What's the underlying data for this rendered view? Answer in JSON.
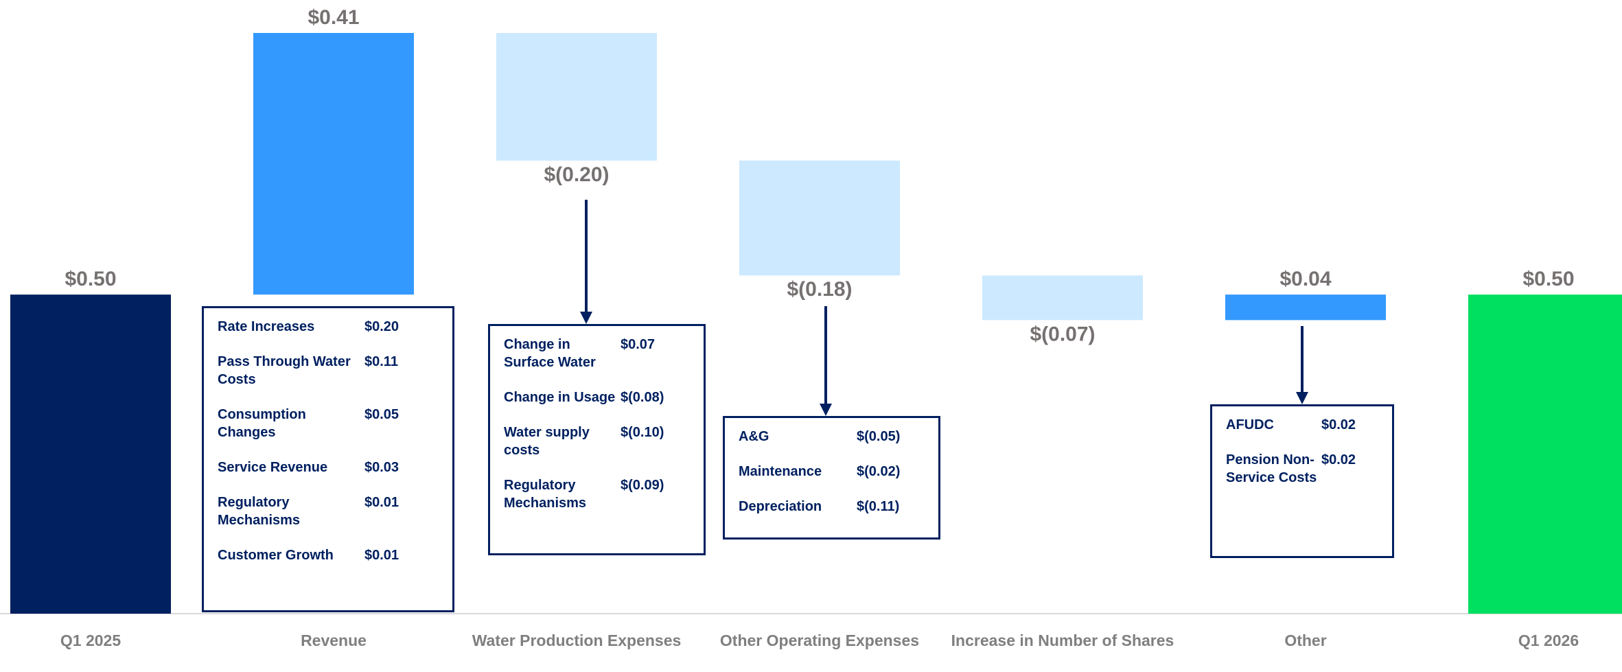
{
  "chart_data": {
    "type": "waterfall",
    "categories": [
      "Q1 2025",
      "Revenue",
      "Water Production Expenses",
      "Other Operating Expenses",
      "Increase in Number of Shares",
      "Other",
      "Q1 2026"
    ],
    "values": [
      0.5,
      0.41,
      -0.2,
      -0.18,
      -0.07,
      0.04,
      0.5
    ],
    "value_labels": [
      "$0.50",
      "$0.41",
      "$(0.20)",
      "$(0.18)",
      "$(0.07)",
      "$0.04",
      "$0.50"
    ],
    "measure": [
      "absolute",
      "relative",
      "relative",
      "relative",
      "relative",
      "relative",
      "absolute"
    ],
    "colors": [
      "#002060",
      "#3399ff",
      "#cce9ff",
      "#cce9ff",
      "#cce9ff",
      "#3399ff",
      "#00e060"
    ],
    "breakdowns": [
      null,
      [
        {
          "label": "Rate Increases",
          "value": "$0.20"
        },
        {
          "label": "Pass Through Water Costs",
          "value": "$0.11"
        },
        {
          "label": "Consumption Changes",
          "value": "$0.05"
        },
        {
          "label": "Service Revenue",
          "value": "$0.03"
        },
        {
          "label": "Regulatory Mechanisms",
          "value": "$0.01"
        },
        {
          "label": "Customer Growth",
          "value": "$0.01"
        }
      ],
      [
        {
          "label": "Change in Surface Water",
          "value": "$0.07"
        },
        {
          "label": "Change in Usage",
          "value": "$(0.08)"
        },
        {
          "label": "Water supply costs",
          "value": "$(0.10)"
        },
        {
          "label": "Regulatory Mechanisms",
          "value": "$(0.09)"
        }
      ],
      [
        {
          "label": "A&G",
          "value": "$(0.05)"
        },
        {
          "label": "Maintenance",
          "value": "$(0.02)"
        },
        {
          "label": "Depreciation",
          "value": "$(0.11)"
        }
      ],
      null,
      [
        {
          "label": "AFUDC",
          "value": "$0.02"
        },
        {
          "label": "Pension Non-Service Costs",
          "value": "$0.02"
        }
      ],
      null
    ]
  }
}
